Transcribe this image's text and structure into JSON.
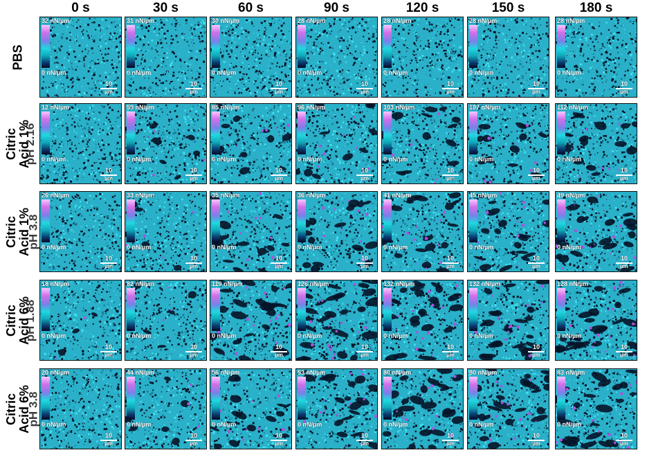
{
  "columns": [
    "0 s",
    "30 s",
    "60 s",
    "90 s",
    "120 s",
    "150 s",
    "180 s"
  ],
  "colors": {
    "base": "#2ab0c8",
    "dark": "#051428",
    "magenta": "#b050e0",
    "cyan_bright": "#40e0f0"
  },
  "rows": [
    {
      "label_lines": [
        "PBS"
      ],
      "ph": "",
      "max_labels": [
        "32 nN/µm",
        "31 nN/µm",
        "30 nN/µm",
        "28 nN/µm",
        "28 nN/µm",
        "28 nN/µm",
        "28 nN/µm"
      ],
      "min_label": "0 nN/µm",
      "scale": {
        "value": "10",
        "unit": "µm"
      }
    },
    {
      "label_lines": [
        "Citric",
        "Acid 1%"
      ],
      "ph": "pH 2.16",
      "max_labels": [
        "12 nN/µm",
        "59 nN/µm",
        "85 nN/µm",
        "96 nN/µm",
        "103 nN/µm",
        "107 nN/µm",
        "112 nN/µm"
      ],
      "min_label": "0 nN/µm",
      "scale": {
        "value": "10",
        "unit": "µm"
      }
    },
    {
      "label_lines": [
        "Citric",
        "Acid 1%"
      ],
      "ph": "pH 3.8",
      "max_labels": [
        "26 nN/µm",
        "33 nN/µm",
        "35 nN/µm",
        "36 nN/µm",
        "41 nN/µm",
        "45 nN/µm",
        "49 nN/µm"
      ],
      "min_label": "0 nN/µm",
      "scale": {
        "value": "10",
        "unit": "µm"
      }
    },
    {
      "label_lines": [
        "Citric",
        "Acid 6%"
      ],
      "ph": "pH 1.88",
      "max_labels": [
        "18 nN/µm",
        "82 nN/µm",
        "119 nN/µm",
        "126 nN/µm",
        "132 nN/µm",
        "132 nN/µm",
        "128 nN/µm"
      ],
      "min_label": "0 nN/µm",
      "scale": {
        "value": "10",
        "unit": "µm"
      }
    },
    {
      "label_lines": [
        "Citric",
        "Acid 6%"
      ],
      "ph": "pH 3.8",
      "max_labels": [
        "20 nN/µm",
        "44 nN/µm",
        "56 nN/µm",
        "53 nN/µm",
        "80 nN/µm",
        "80 nN/µm",
        "83 nN/µm"
      ],
      "min_label": "0 nN/µm",
      "scale": {
        "value": "10",
        "unit": "µm"
      }
    }
  ]
}
